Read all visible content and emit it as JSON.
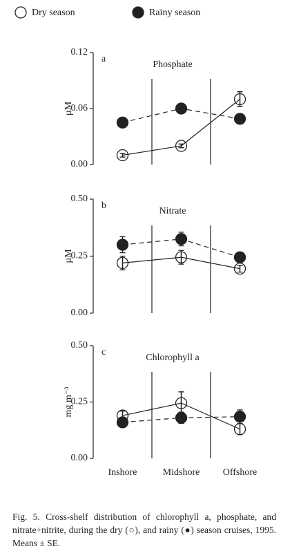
{
  "legend": [
    {
      "name": "Dry season",
      "marker": "open"
    },
    {
      "name": "Rainy season",
      "marker": "filled"
    }
  ],
  "chart_data": [
    {
      "type": "line",
      "label": "a",
      "title": "Phosphate",
      "ylabel": "µM",
      "ylim": [
        0,
        0.12
      ],
      "yticks": [
        {
          "value": 0,
          "label": "0.00"
        },
        0.06,
        0.12
      ],
      "series": [
        {
          "marker": "open",
          "line": "solid",
          "values": [
            0.01,
            0.02,
            0.07
          ],
          "errors": [
            0.002,
            0.002,
            0.008
          ]
        },
        {
          "marker": "filled",
          "line": "dashed",
          "values": [
            0.045,
            0.06,
            0.049
          ],
          "errors": [
            0.003,
            0.003,
            0.003
          ]
        }
      ]
    },
    {
      "type": "line",
      "label": "b",
      "title": "Nitrate",
      "ylabel": "µM",
      "ylim": [
        0,
        0.5
      ],
      "yticks": [
        {
          "value": 0,
          "label": "0.00"
        },
        0.25,
        {
          "value": 0.5,
          "label": "0.50"
        }
      ],
      "series": [
        {
          "marker": "open",
          "line": "solid",
          "values": [
            0.22,
            0.245,
            0.195
          ],
          "errors": [
            0.03,
            0.03,
            0.015
          ]
        },
        {
          "marker": "filled",
          "line": "dashed",
          "values": [
            0.3,
            0.325,
            0.245
          ],
          "errors": [
            0.035,
            0.03,
            0.01
          ]
        }
      ]
    },
    {
      "type": "line",
      "label": "c",
      "title": "Chlorophyll a",
      "ylabel": "mg m⁻³",
      "categories": [
        "Inshore",
        "Midshore",
        "Offshore"
      ],
      "ylim": [
        0,
        0.5
      ],
      "yticks": [
        {
          "value": 0,
          "label": "0.00"
        },
        0.25,
        {
          "value": 0.5,
          "label": "0.50"
        }
      ],
      "series": [
        {
          "marker": "open",
          "line": "solid",
          "values": [
            0.19,
            0.245,
            0.13
          ],
          "errors": [
            0.02,
            0.05,
            0.025
          ]
        },
        {
          "marker": "filled",
          "line": "dashed",
          "values": [
            0.16,
            0.18,
            0.185
          ],
          "errors": [
            0.015,
            0.025,
            0.03
          ]
        }
      ]
    }
  ],
  "caption": "Fig. 5. Cross-shelf distribution of chlorophyll a, phosphate, and nitrate+nitrite, during the dry (○), and rainy (●) season cruises, 1995. Means ± SE."
}
